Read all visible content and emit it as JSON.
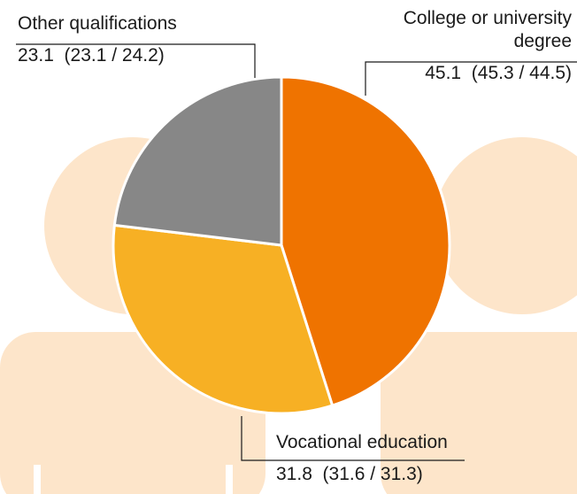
{
  "chart_data": {
    "type": "pie",
    "categories": [
      "College or university degree",
      "Vocational education",
      "Other qualifications"
    ],
    "values": [
      45.1,
      31.8,
      23.1
    ],
    "comparison_labels": [
      "(45.3 / 44.5)",
      "(31.6 / 31.3)",
      "(23.1 / 24.2)"
    ],
    "colors": [
      "#ef7300",
      "#f7b024",
      "#878787"
    ]
  }
}
